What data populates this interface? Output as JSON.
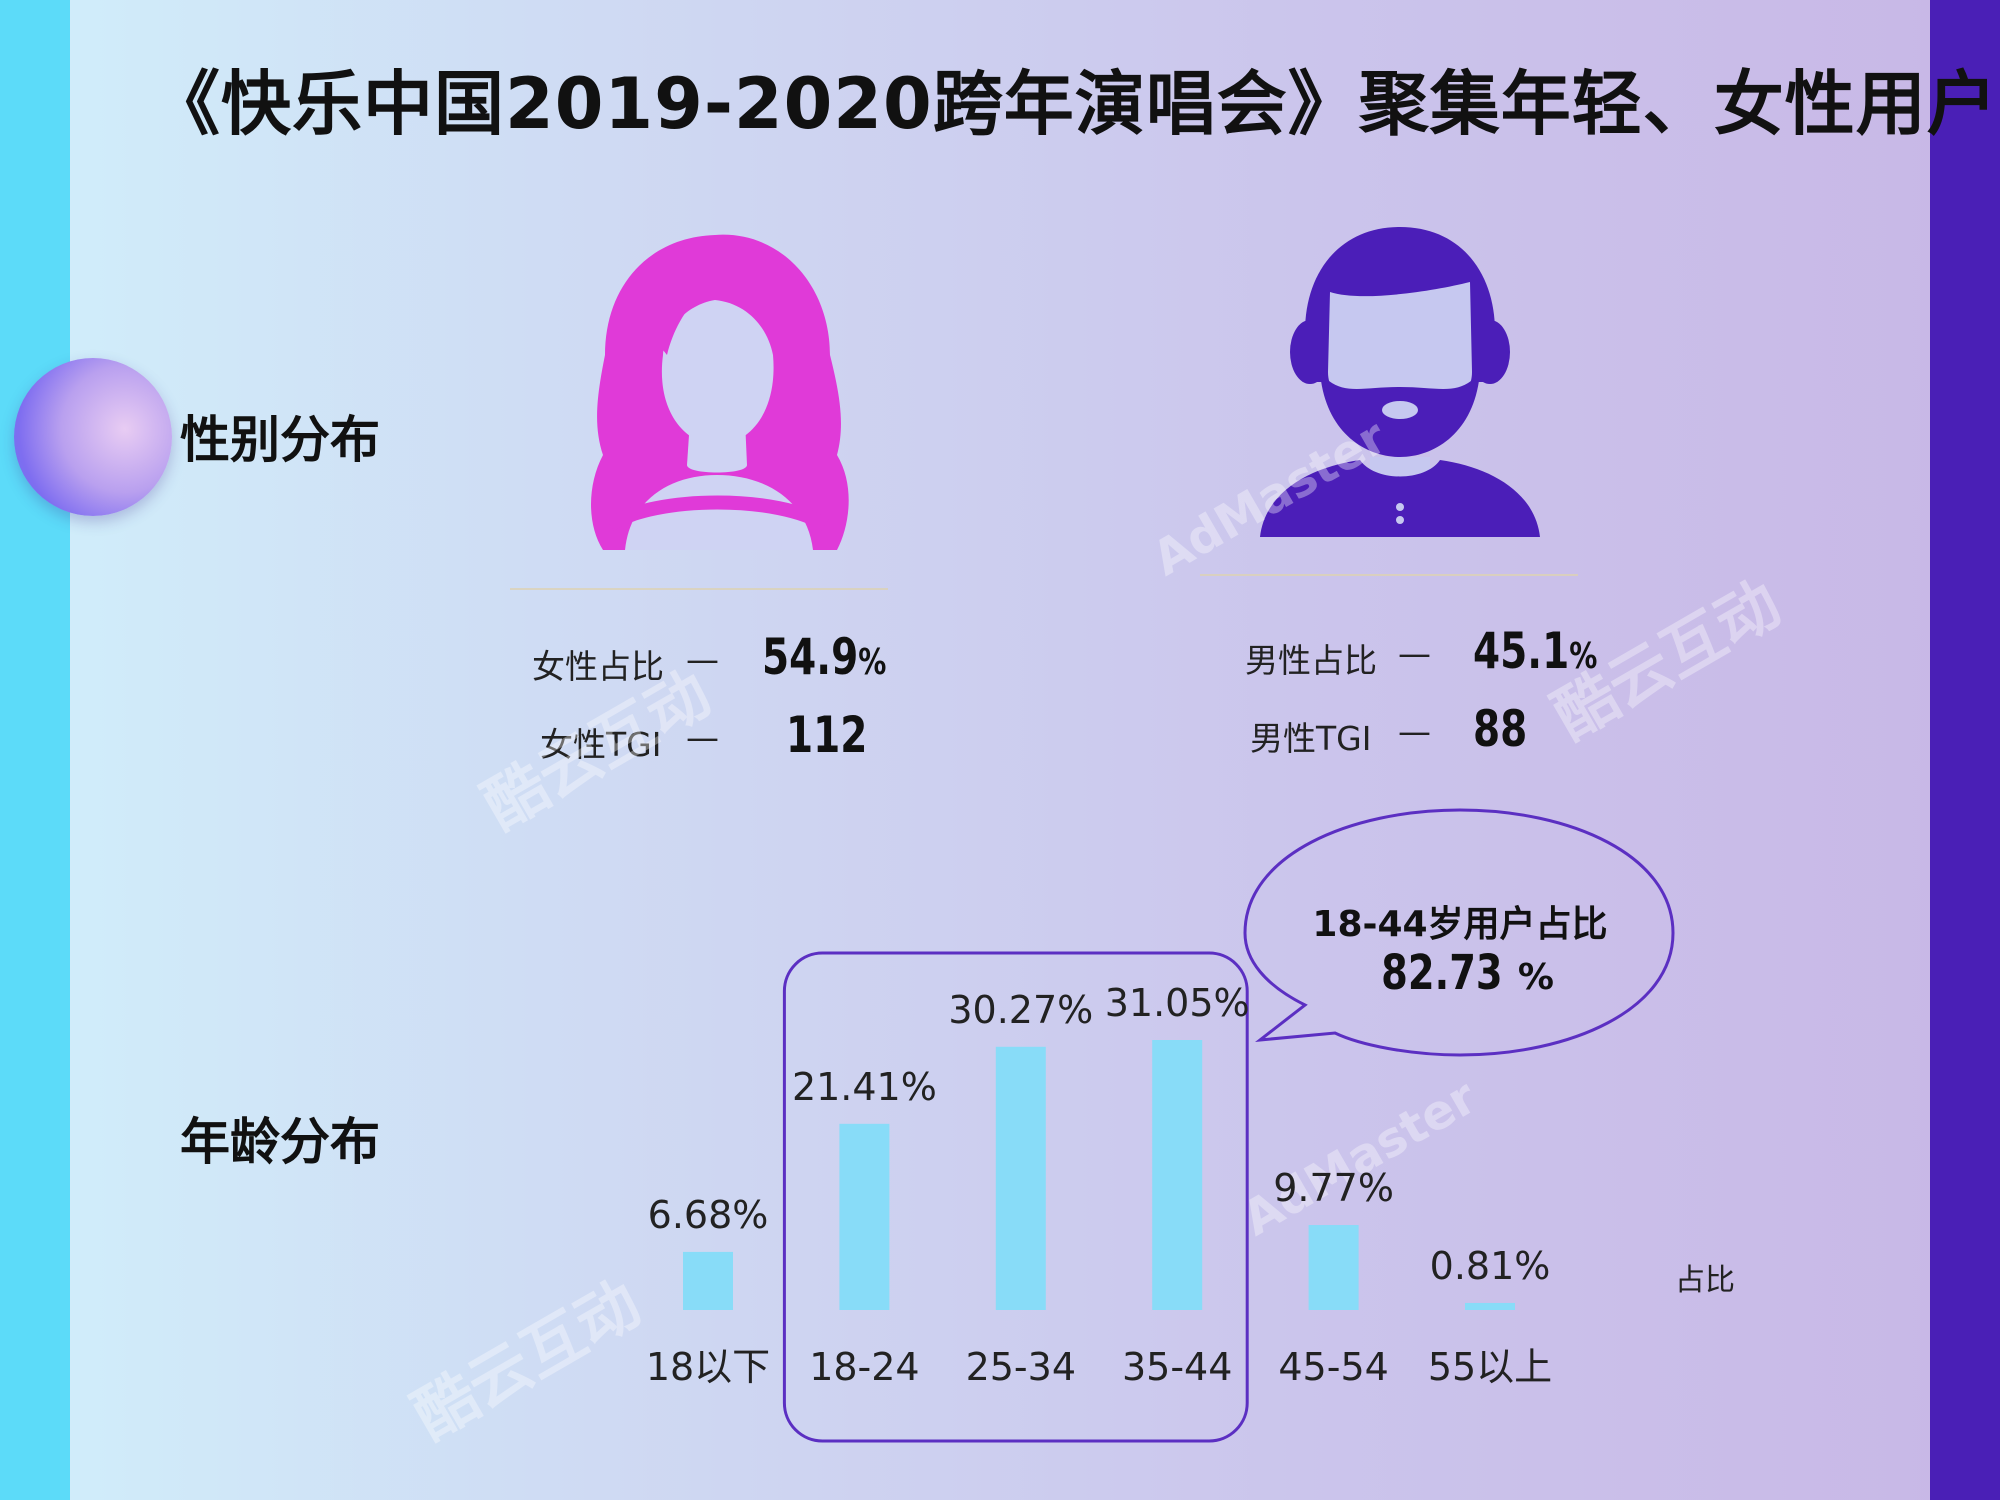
{
  "title": "《快乐中国2019-2020跨年演唱会》聚集年轻、女性用户",
  "gender_section": {
    "label": "性别分布",
    "female": {
      "share_label": "女性占比",
      "share_value": "54.9",
      "share_unit": "%",
      "tgi_label": "女性TGI",
      "tgi_value": "112",
      "dash": "—",
      "icon": "female-user-icon",
      "color": "#e03ad8"
    },
    "male": {
      "share_label": "男性占比",
      "share_value": "45.1",
      "share_unit": "%",
      "tgi_label": "男性TGI",
      "tgi_value": "88",
      "dash": "—",
      "icon": "male-user-icon",
      "color": "#4b1eb8"
    }
  },
  "age_section": {
    "label": "年龄分布"
  },
  "callout": {
    "line1": "18-44岁用户占比",
    "value": "82.73",
    "unit": "%"
  },
  "watermarks": {
    "brand1": "酷云互动",
    "brand2": "AdMaster"
  },
  "chart_data": {
    "type": "bar",
    "categories": [
      "18以下",
      "18-24",
      "25-34",
      "35-44",
      "45-54",
      "55以上"
    ],
    "series": [
      {
        "name": "占比",
        "values": [
          6.68,
          21.41,
          30.27,
          31.05,
          9.77,
          0.81
        ]
      }
    ],
    "data_labels": [
      "6.68%",
      "21.41%",
      "30.27%",
      "31.05%",
      "9.77%",
      "0.81%"
    ],
    "highlighted_categories": [
      "18-24",
      "25-34",
      "35-44"
    ],
    "bar_color": "#88dcf8",
    "highlight_border_color": "#5b2fc2",
    "grid": false,
    "legend_position": "right"
  }
}
